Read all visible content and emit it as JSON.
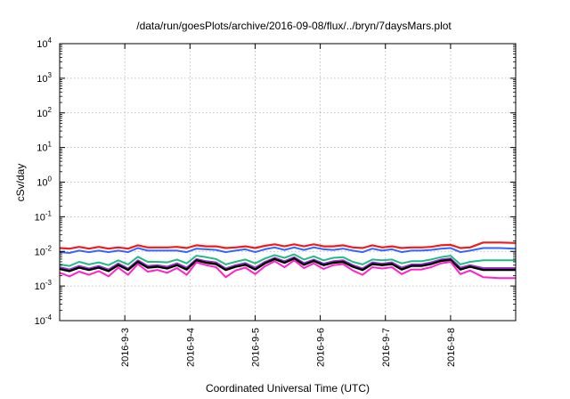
{
  "chart_data": {
    "type": "line",
    "title": "/data/run/goesPlots/archive/2016-09-08/flux/../bryn/7daysMars.plot",
    "xlabel": "Coordinated Universal Time (UTC)",
    "ylabel": "cSv/day",
    "y_scale": "log",
    "ylim_exponents": [
      -4,
      4
    ],
    "y_ticks": [
      {
        "base": "10",
        "exp": "-4"
      },
      {
        "base": "10",
        "exp": "-3"
      },
      {
        "base": "10",
        "exp": "-2"
      },
      {
        "base": "10",
        "exp": "-1"
      },
      {
        "base": "10",
        "exp": "0"
      },
      {
        "base": "10",
        "exp": "1"
      },
      {
        "base": "10",
        "exp": "2"
      },
      {
        "base": "10",
        "exp": "3"
      },
      {
        "base": "10",
        "exp": "4"
      }
    ],
    "x_start": "2016-09-02 00:00",
    "x_end": "2016-09-08 23:59",
    "x_ticks": [
      "2016-9-3",
      "2016-9-4",
      "2016-9-5",
      "2016-9-6",
      "2016-9-7",
      "2016-9-8"
    ],
    "grid": true,
    "legend": "none",
    "series": [
      {
        "color": "#ee1c1c",
        "width": 2.2,
        "x": [
          0,
          0.15,
          0.3,
          0.45,
          0.6,
          0.75,
          0.9,
          1.05,
          1.2,
          1.35,
          1.5,
          1.65,
          1.8,
          1.95,
          2.1,
          2.25,
          2.4,
          2.55,
          2.7,
          2.85,
          3,
          3.15,
          3.3,
          3.45,
          3.6,
          3.75,
          3.9,
          4.05,
          4.2,
          4.35,
          4.5,
          4.65,
          4.8,
          4.95,
          5.1,
          5.25,
          5.4,
          5.55,
          5.7,
          5.85,
          6,
          6.15,
          6.3,
          6.5,
          6.75,
          7
        ],
        "y": [
          0.0125,
          0.012,
          0.0135,
          0.012,
          0.0135,
          0.012,
          0.013,
          0.012,
          0.015,
          0.013,
          0.013,
          0.013,
          0.0135,
          0.0125,
          0.015,
          0.014,
          0.014,
          0.0125,
          0.013,
          0.014,
          0.0125,
          0.0145,
          0.016,
          0.014,
          0.016,
          0.014,
          0.016,
          0.014,
          0.014,
          0.015,
          0.013,
          0.0125,
          0.015,
          0.013,
          0.014,
          0.0125,
          0.013,
          0.013,
          0.0135,
          0.015,
          0.0155,
          0.0125,
          0.013,
          0.018,
          0.018,
          0.0175
        ]
      },
      {
        "color": "#3366ff",
        "width": 2,
        "x": [
          0,
          0.15,
          0.3,
          0.45,
          0.6,
          0.75,
          0.9,
          1.05,
          1.2,
          1.35,
          1.5,
          1.65,
          1.8,
          1.95,
          2.1,
          2.25,
          2.4,
          2.55,
          2.7,
          2.85,
          3,
          3.15,
          3.3,
          3.45,
          3.6,
          3.75,
          3.9,
          4.05,
          4.2,
          4.35,
          4.5,
          4.65,
          4.8,
          4.95,
          5.1,
          5.25,
          5.4,
          5.55,
          5.7,
          5.85,
          6,
          6.15,
          6.3,
          6.5,
          6.75,
          7
        ],
        "y": [
          0.0095,
          0.009,
          0.0105,
          0.0095,
          0.0105,
          0.0095,
          0.0105,
          0.0095,
          0.0125,
          0.0105,
          0.0105,
          0.0105,
          0.0105,
          0.0095,
          0.012,
          0.0115,
          0.011,
          0.0095,
          0.0105,
          0.0115,
          0.0095,
          0.0115,
          0.013,
          0.011,
          0.013,
          0.011,
          0.013,
          0.0115,
          0.011,
          0.012,
          0.0105,
          0.0095,
          0.012,
          0.0105,
          0.0115,
          0.0095,
          0.0105,
          0.0105,
          0.011,
          0.012,
          0.0125,
          0.0095,
          0.0105,
          0.0125,
          0.0125,
          0.012
        ]
      },
      {
        "color": "#22bb88",
        "width": 2,
        "x": [
          0,
          0.15,
          0.3,
          0.45,
          0.6,
          0.75,
          0.9,
          1.05,
          1.2,
          1.35,
          1.5,
          1.65,
          1.8,
          1.95,
          2.1,
          2.25,
          2.4,
          2.55,
          2.7,
          2.85,
          3,
          3.15,
          3.3,
          3.45,
          3.6,
          3.75,
          3.9,
          4.05,
          4.2,
          4.35,
          4.5,
          4.65,
          4.8,
          4.95,
          5.1,
          5.25,
          5.4,
          5.55,
          5.7,
          5.85,
          6,
          6.15,
          6.3,
          6.5,
          6.75,
          7
        ],
        "y": [
          0.0042,
          0.0038,
          0.005,
          0.0042,
          0.0048,
          0.004,
          0.0055,
          0.0042,
          0.007,
          0.005,
          0.005,
          0.0048,
          0.0058,
          0.0045,
          0.0075,
          0.0068,
          0.006,
          0.0042,
          0.005,
          0.0058,
          0.0045,
          0.0062,
          0.0078,
          0.0065,
          0.0082,
          0.0058,
          0.0072,
          0.0055,
          0.0065,
          0.0068,
          0.005,
          0.0042,
          0.0058,
          0.0055,
          0.0058,
          0.0045,
          0.0052,
          0.0052,
          0.0058,
          0.0068,
          0.0075,
          0.0042,
          0.005,
          0.0055,
          0.0055,
          0.0055
        ]
      },
      {
        "color": "#9933cc",
        "width": 2,
        "x": [
          0,
          0.15,
          0.3,
          0.45,
          0.6,
          0.75,
          0.9,
          1.05,
          1.2,
          1.35,
          1.5,
          1.65,
          1.8,
          1.95,
          2.1,
          2.25,
          2.4,
          2.55,
          2.7,
          2.85,
          3,
          3.15,
          3.3,
          3.45,
          3.6,
          3.75,
          3.9,
          4.05,
          4.2,
          4.35,
          4.5,
          4.65,
          4.8,
          4.95,
          5.1,
          5.25,
          5.4,
          5.55,
          5.7,
          5.85,
          6,
          6.15,
          6.3,
          6.5,
          6.75,
          7
        ],
        "y": [
          0.0035,
          0.003,
          0.0038,
          0.0032,
          0.0038,
          0.003,
          0.0045,
          0.0032,
          0.0055,
          0.0038,
          0.004,
          0.0036,
          0.0045,
          0.0034,
          0.006,
          0.0052,
          0.0048,
          0.0032,
          0.004,
          0.0046,
          0.0034,
          0.005,
          0.0065,
          0.0052,
          0.0068,
          0.0046,
          0.0058,
          0.0044,
          0.0052,
          0.0055,
          0.004,
          0.0032,
          0.0048,
          0.0044,
          0.0048,
          0.0034,
          0.0042,
          0.0042,
          0.0048,
          0.0058,
          0.0062,
          0.0034,
          0.004,
          0.0033,
          0.0033,
          0.0033
        ]
      },
      {
        "color": "#000000",
        "width": 2.4,
        "x": [
          0,
          0.15,
          0.3,
          0.45,
          0.6,
          0.75,
          0.9,
          1.05,
          1.2,
          1.35,
          1.5,
          1.65,
          1.8,
          1.95,
          2.1,
          2.25,
          2.4,
          2.55,
          2.7,
          2.85,
          3,
          3.15,
          3.3,
          3.45,
          3.6,
          3.75,
          3.9,
          4.05,
          4.2,
          4.35,
          4.5,
          4.65,
          4.8,
          4.95,
          5.1,
          5.25,
          5.4,
          5.55,
          5.7,
          5.85,
          6,
          6.15,
          6.3,
          6.5,
          6.75,
          7
        ],
        "y": [
          0.0031,
          0.0027,
          0.0034,
          0.0029,
          0.0034,
          0.0027,
          0.004,
          0.0029,
          0.005,
          0.0034,
          0.0036,
          0.0032,
          0.004,
          0.003,
          0.0055,
          0.0047,
          0.0043,
          0.0029,
          0.0036,
          0.0041,
          0.003,
          0.0045,
          0.006,
          0.0047,
          0.0062,
          0.0041,
          0.0053,
          0.004,
          0.0047,
          0.005,
          0.0036,
          0.0029,
          0.0043,
          0.004,
          0.0043,
          0.003,
          0.0038,
          0.0038,
          0.0043,
          0.0053,
          0.0057,
          0.003,
          0.0036,
          0.0029,
          0.0029,
          0.0029
        ]
      },
      {
        "color": "#ff22cc",
        "width": 2,
        "x": [
          0,
          0.15,
          0.3,
          0.45,
          0.6,
          0.75,
          0.9,
          1.05,
          1.2,
          1.35,
          1.5,
          1.65,
          1.8,
          1.95,
          2.1,
          2.25,
          2.4,
          2.55,
          2.7,
          2.85,
          3,
          3.15,
          3.3,
          3.45,
          3.6,
          3.75,
          3.9,
          4.05,
          4.2,
          4.35,
          4.5,
          4.65,
          4.8,
          4.95,
          5.1,
          5.25,
          5.4,
          5.55,
          5.7,
          5.85,
          6,
          6.15,
          6.3,
          6.5,
          6.75,
          7
        ],
        "y": [
          0.0024,
          0.0019,
          0.0026,
          0.0021,
          0.0027,
          0.0019,
          0.0034,
          0.0021,
          0.0043,
          0.0026,
          0.0029,
          0.0024,
          0.0033,
          0.0021,
          0.0048,
          0.004,
          0.0035,
          0.0018,
          0.0028,
          0.0034,
          0.0022,
          0.0037,
          0.0052,
          0.0035,
          0.0055,
          0.0033,
          0.0045,
          0.0031,
          0.004,
          0.0043,
          0.0028,
          0.0021,
          0.0035,
          0.0032,
          0.0035,
          0.0022,
          0.003,
          0.003,
          0.0035,
          0.0045,
          0.005,
          0.0022,
          0.0028,
          0.0018,
          0.0017,
          0.0017
        ]
      }
    ]
  }
}
